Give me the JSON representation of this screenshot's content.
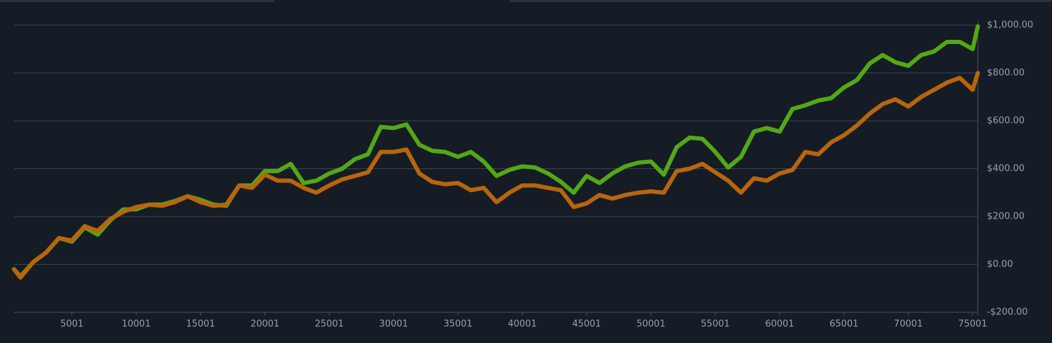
{
  "chart_data": {
    "type": "line",
    "x": [
      500,
      1000,
      2000,
      3000,
      4000,
      5000,
      6000,
      7000,
      8000,
      9000,
      10000,
      11000,
      12000,
      13000,
      14000,
      15000,
      16000,
      17000,
      18000,
      19000,
      20000,
      21000,
      22000,
      23000,
      24000,
      25000,
      26000,
      27000,
      28000,
      29000,
      30000,
      31000,
      32000,
      33000,
      34000,
      35000,
      36000,
      37000,
      38000,
      39000,
      40000,
      41000,
      42000,
      43000,
      44000,
      45000,
      46000,
      47000,
      48000,
      49000,
      50000,
      51000,
      52000,
      53000,
      54000,
      55000,
      56000,
      57000,
      58000,
      59000,
      60000,
      61000,
      62000,
      63000,
      64000,
      65000,
      66000,
      67000,
      68000,
      69000,
      70000,
      71000,
      72000,
      73000,
      74000,
      75000,
      75400
    ],
    "series": [
      {
        "color": "#52a815",
        "values": [
          -20,
          -50,
          10,
          50,
          110,
          95,
          155,
          125,
          185,
          230,
          230,
          250,
          250,
          265,
          285,
          270,
          250,
          245,
          330,
          330,
          390,
          390,
          420,
          340,
          350,
          380,
          400,
          440,
          460,
          575,
          570,
          585,
          500,
          475,
          470,
          450,
          470,
          430,
          370,
          395,
          410,
          405,
          380,
          345,
          300,
          370,
          340,
          380,
          410,
          425,
          430,
          375,
          490,
          530,
          525,
          470,
          405,
          450,
          555,
          570,
          555,
          650,
          665,
          685,
          695,
          740,
          770,
          840,
          875,
          845,
          830,
          875,
          890,
          930,
          930,
          900,
          995
        ]
      },
      {
        "color": "#b8650c",
        "values": [
          -20,
          -55,
          10,
          50,
          110,
          100,
          160,
          140,
          190,
          220,
          240,
          250,
          245,
          260,
          285,
          260,
          245,
          250,
          330,
          320,
          375,
          350,
          350,
          320,
          300,
          330,
          355,
          370,
          385,
          470,
          470,
          480,
          380,
          345,
          335,
          340,
          310,
          320,
          260,
          300,
          330,
          330,
          320,
          310,
          240,
          255,
          290,
          275,
          290,
          300,
          305,
          300,
          390,
          400,
          420,
          385,
          350,
          300,
          360,
          350,
          380,
          395,
          470,
          460,
          510,
          540,
          580,
          630,
          670,
          690,
          660,
          700,
          730,
          760,
          780,
          730,
          800
        ]
      }
    ],
    "xlim": [
      500,
      75400
    ],
    "xticks": [
      5001,
      10001,
      15001,
      20001,
      25001,
      30001,
      35001,
      40001,
      45001,
      50001,
      55001,
      60001,
      65001,
      70001,
      75001
    ],
    "ylim": [
      -200,
      1000
    ],
    "yticks": [
      {
        "value": -200,
        "label": "-$200.00"
      },
      {
        "value": 0,
        "label": "$0.00"
      },
      {
        "value": 200,
        "label": "$200.00"
      },
      {
        "value": 400,
        "label": "$400.00"
      },
      {
        "value": 600,
        "label": "$600.00"
      },
      {
        "value": 800,
        "label": "$800.00"
      },
      {
        "value": 1000,
        "label": "$1,000.00"
      }
    ],
    "grid": true
  }
}
